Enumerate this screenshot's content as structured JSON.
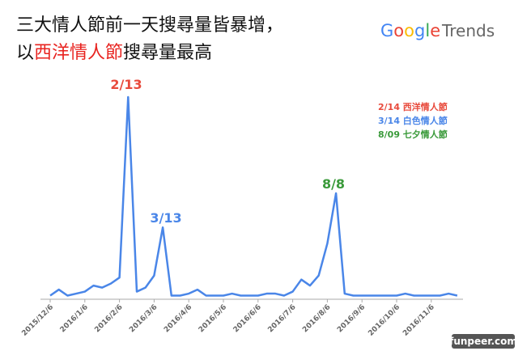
{
  "chart_data": {
    "type": "line",
    "title_line1": "三大情人節前一天搜尋量皆暴增，",
    "title_line2": [
      "以",
      "西洋情人節",
      "搜尋量最高"
    ],
    "title_highlight_color": "#e8231f",
    "logo": [
      "Google",
      "Trends"
    ],
    "watermark": "funpeer.com",
    "legend": [
      {
        "text": "2/14 西洋情人節",
        "color": "#e84a3c"
      },
      {
        "text": "3/14 白色情人節",
        "color": "#4a86e8"
      },
      {
        "text": "8/09 七夕情人節",
        "color": "#3a9a3a"
      }
    ],
    "annotations": [
      {
        "text": "2/13",
        "color": "#e84a3c"
      },
      {
        "text": "3/13",
        "color": "#4a86e8"
      },
      {
        "text": "8/8",
        "color": "#3a9a3a"
      }
    ],
    "categories": [
      "2015/12/6",
      null,
      null,
      null,
      "2016/1/6",
      null,
      null,
      null,
      "2016/2/6",
      null,
      null,
      null,
      "2016/3/6",
      null,
      null,
      null,
      "2016/4/6",
      null,
      null,
      null,
      "2016/5/6",
      null,
      null,
      null,
      "2016/6/6",
      null,
      null,
      null,
      "2016/7/6",
      null,
      null,
      null,
      "2016/8/6",
      null,
      null,
      null,
      "2016/9/6",
      null,
      null,
      null,
      "2016/10/6",
      null,
      null,
      null,
      "2016/11/6",
      null,
      null,
      null
    ],
    "series": [
      {
        "color": "#4a86e8",
        "values": [
          1,
          4,
          1,
          2,
          3,
          6,
          5,
          7,
          10,
          100,
          3,
          5,
          11,
          35,
          1,
          1,
          2,
          4,
          1,
          1,
          1,
          2,
          1,
          1,
          1,
          2,
          2,
          1,
          3,
          9,
          6,
          11,
          27,
          52,
          2,
          1,
          1,
          1,
          1,
          1,
          1,
          2,
          1,
          1,
          1,
          1,
          2,
          1
        ]
      }
    ],
    "ylim": [
      0,
      100
    ]
  }
}
